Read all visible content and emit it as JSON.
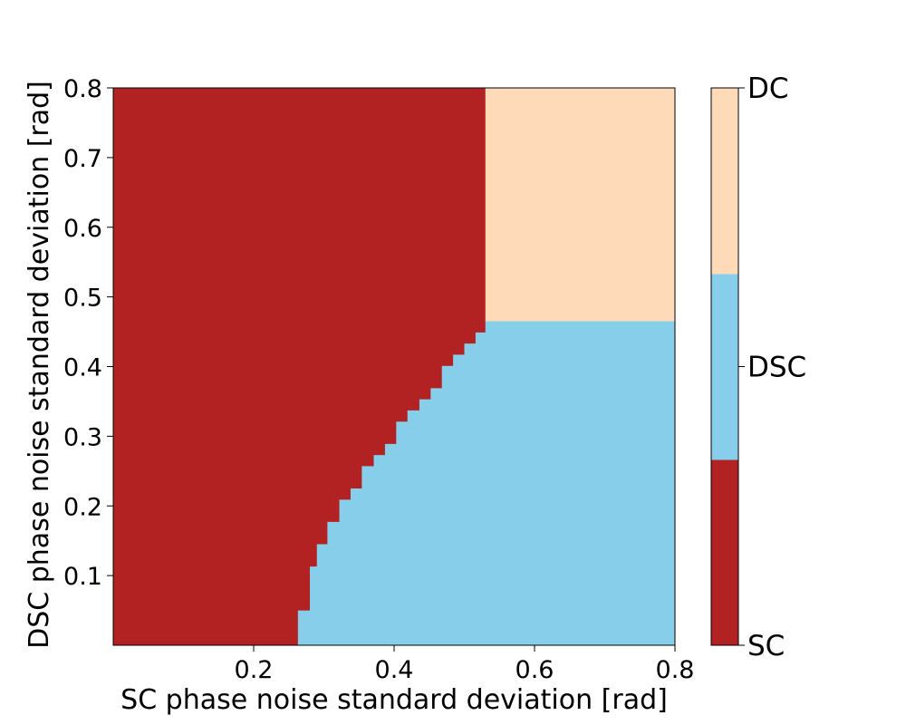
{
  "chart_data": {
    "type": "heatmap",
    "title": "",
    "xlabel": "SC phase noise standard deviation [rad]",
    "ylabel": "DSC phase noise standard deviation [rad]",
    "xlim": [
      0.0,
      0.8
    ],
    "ylim": [
      0.0,
      0.8
    ],
    "xticks": [
      0.2,
      0.4,
      0.6,
      0.8
    ],
    "yticks": [
      0.1,
      0.2,
      0.3,
      0.4,
      0.5,
      0.6,
      0.7,
      0.8
    ],
    "tick_labels": {
      "x": [
        "0.2",
        "0.4",
        "0.6",
        "0.8"
      ],
      "y": [
        "0.1",
        "0.2",
        "0.3",
        "0.4",
        "0.5",
        "0.6",
        "0.7",
        "0.8"
      ]
    },
    "grid": false,
    "classes": [
      {
        "name": "SC",
        "color": "#b22222"
      },
      {
        "name": "DSC",
        "color": "#87ceeb"
      },
      {
        "name": "DC",
        "color": "#ffdab9"
      }
    ],
    "colorbar": {
      "position": "right",
      "labels": [
        "DC",
        "DSC",
        "SC"
      ]
    },
    "regions": {
      "dc_sc_boundary_x": 0.53,
      "dc_dsc_boundary_y": 0.465,
      "sc_dsc_boundary_steps": [
        {
          "y_from": 0.0,
          "y_to": 0.05,
          "x": 0.263
        },
        {
          "y_from": 0.05,
          "y_to": 0.113,
          "x": 0.28
        },
        {
          "y_from": 0.113,
          "y_to": 0.145,
          "x": 0.29
        },
        {
          "y_from": 0.145,
          "y_to": 0.177,
          "x": 0.305
        },
        {
          "y_from": 0.177,
          "y_to": 0.209,
          "x": 0.322
        },
        {
          "y_from": 0.209,
          "y_to": 0.225,
          "x": 0.338
        },
        {
          "y_from": 0.225,
          "y_to": 0.257,
          "x": 0.354
        },
        {
          "y_from": 0.257,
          "y_to": 0.273,
          "x": 0.371
        },
        {
          "y_from": 0.273,
          "y_to": 0.289,
          "x": 0.387
        },
        {
          "y_from": 0.289,
          "y_to": 0.321,
          "x": 0.403
        },
        {
          "y_from": 0.321,
          "y_to": 0.337,
          "x": 0.419
        },
        {
          "y_from": 0.337,
          "y_to": 0.353,
          "x": 0.436
        },
        {
          "y_from": 0.353,
          "y_to": 0.369,
          "x": 0.452
        },
        {
          "y_from": 0.369,
          "y_to": 0.401,
          "x": 0.468
        },
        {
          "y_from": 0.401,
          "y_to": 0.417,
          "x": 0.484
        },
        {
          "y_from": 0.417,
          "y_to": 0.433,
          "x": 0.5
        },
        {
          "y_from": 0.433,
          "y_to": 0.449,
          "x": 0.516
        },
        {
          "y_from": 0.449,
          "y_to": 0.465,
          "x": 0.53
        }
      ]
    }
  }
}
